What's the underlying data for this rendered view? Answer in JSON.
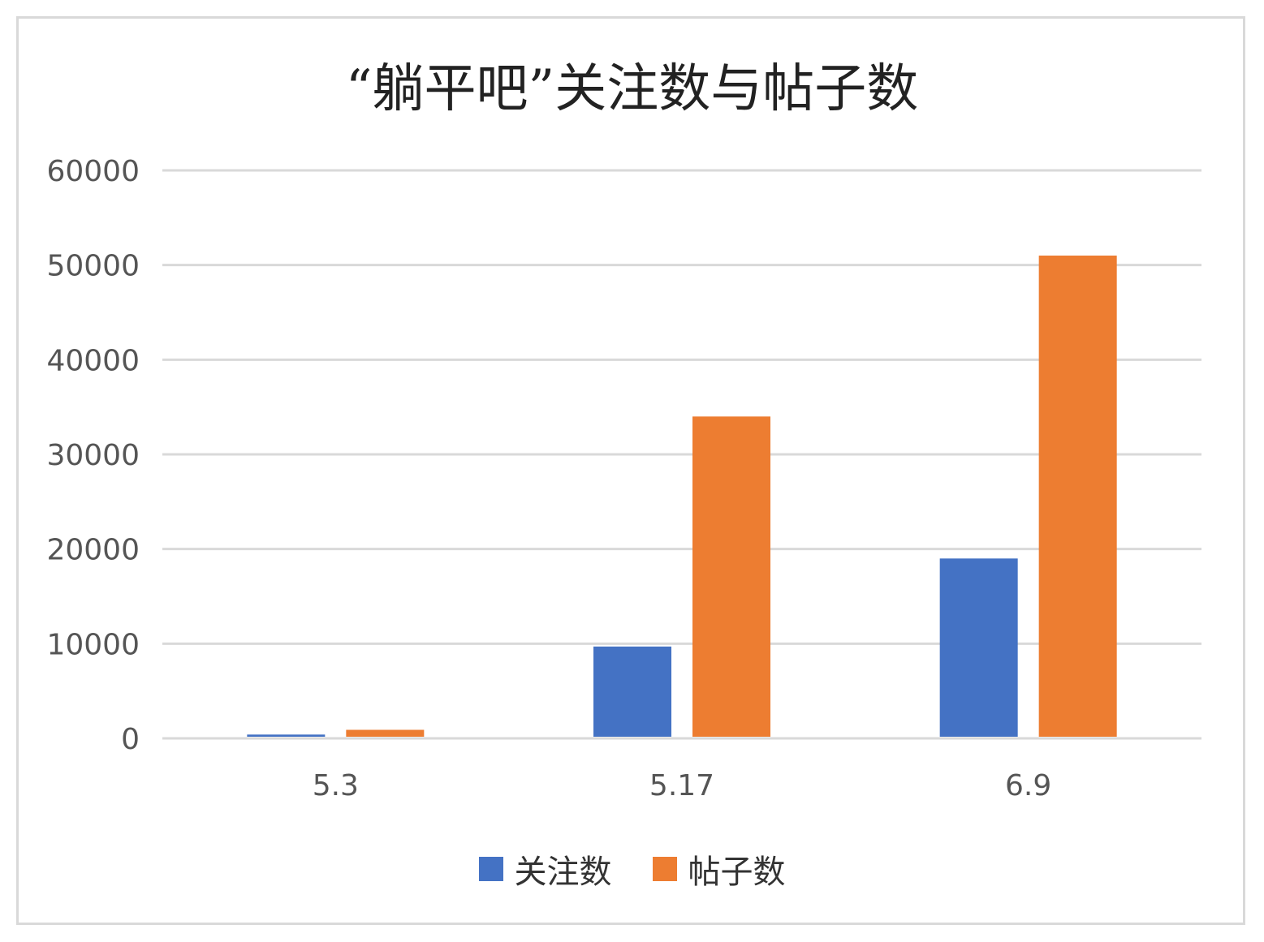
{
  "chart_data": {
    "type": "bar",
    "title": "“躺平吧”关注数与帖子数",
    "categories": [
      "5.3",
      "5.17",
      "6.9"
    ],
    "series": [
      {
        "name": "关注数",
        "values": [
          400,
          9700,
          19000
        ],
        "color": "#4472C4"
      },
      {
        "name": "帖子数",
        "values": [
          900,
          34000,
          51000
        ],
        "color": "#ED7D31"
      }
    ],
    "yticks": [
      "0",
      "10000",
      "20000",
      "30000",
      "40000",
      "50000",
      "60000"
    ],
    "ylim": [
      0,
      60000
    ],
    "grid": true,
    "legend_position": "bottom"
  }
}
